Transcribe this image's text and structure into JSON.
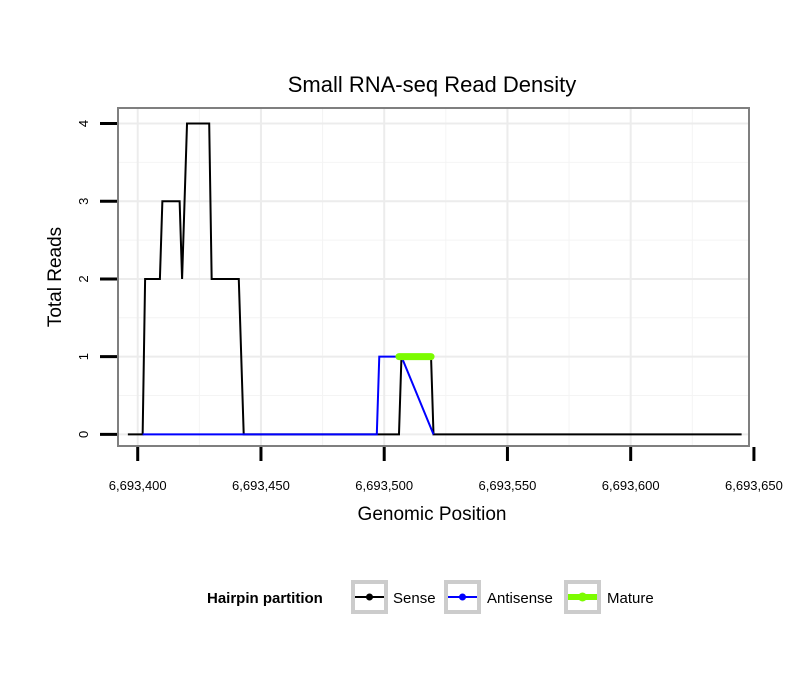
{
  "chart_data": {
    "type": "line",
    "title": "Small RNA-seq Read Density",
    "xlabel": "Genomic Position",
    "ylabel": "Total Reads",
    "xlim": [
      6693392,
      6693648
    ],
    "ylim": [
      -0.15,
      4.2
    ],
    "x_ticks": [
      6693400,
      6693450,
      6693500,
      6693550,
      6693600,
      6693650
    ],
    "x_tick_labels": [
      "6,693,400",
      "6,693,450",
      "6,693,500",
      "6,693,550",
      "6,693,600",
      "6,693,650"
    ],
    "y_ticks": [
      0,
      1,
      2,
      3,
      4
    ],
    "y_tick_labels": [
      "0",
      "1",
      "2",
      "3",
      "4"
    ],
    "grid": true,
    "legend": {
      "title": "Hairpin partition",
      "position": "bottom",
      "entries": [
        "Sense",
        "Antisense",
        "Mature"
      ]
    },
    "series": [
      {
        "name": "Sense",
        "color": "#000000",
        "x": [
          6693396,
          6693402,
          6693403,
          6693409,
          6693410,
          6693417,
          6693418,
          6693420,
          6693421,
          6693429,
          6693430,
          6693441,
          6693443,
          6693506,
          6693507,
          6693519,
          6693520,
          6693645
        ],
        "y": [
          0,
          0,
          2,
          2,
          3,
          3,
          2,
          4,
          4,
          4,
          2,
          2,
          0,
          0,
          1,
          1,
          0,
          0
        ]
      },
      {
        "name": "Antisense",
        "color": "#0000ff",
        "x": [
          6693402,
          6693497,
          6693498,
          6693506,
          6693507,
          6693520
        ],
        "y": [
          0,
          0,
          1,
          1,
          1,
          0
        ]
      },
      {
        "name": "Mature",
        "color": "#7cfc00",
        "x": [
          6693506,
          6693519
        ],
        "y": [
          1,
          1
        ]
      }
    ]
  }
}
